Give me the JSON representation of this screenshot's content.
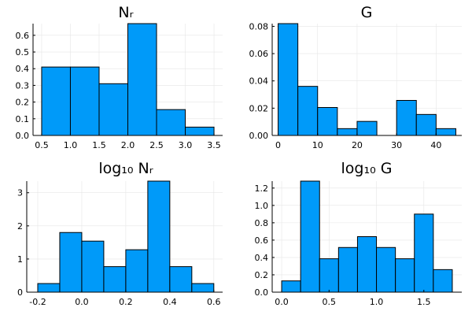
{
  "chart_data": [
    {
      "type": "bar",
      "title": "Nᵣ",
      "grid": true,
      "legend": "none",
      "color": "#009af9",
      "xlim": [
        0.35,
        3.65
      ],
      "ylim": [
        0,
        0.67
      ],
      "xticks": [
        0.5,
        1.0,
        1.5,
        2.0,
        2.5,
        3.0,
        3.5
      ],
      "xtick_labels": [
        "0.5",
        "1.0",
        "1.5",
        "2.0",
        "2.5",
        "3.0",
        "3.5"
      ],
      "yticks": [
        0,
        0.1,
        0.2,
        0.3,
        0.4,
        0.5,
        0.6
      ],
      "ytick_labels": [
        "0.0",
        "0.1",
        "0.2",
        "0.3",
        "0.4",
        "0.5",
        "0.6"
      ],
      "bins": [
        {
          "x0": 0.5,
          "x1": 1.0,
          "value": 0.41
        },
        {
          "x0": 1.0,
          "x1": 1.5,
          "value": 0.41
        },
        {
          "x0": 1.5,
          "x1": 2.0,
          "value": 0.31
        },
        {
          "x0": 2.0,
          "x1": 2.5,
          "value": 0.67
        },
        {
          "x0": 2.5,
          "x1": 3.0,
          "value": 0.155
        },
        {
          "x0": 3.0,
          "x1": 3.5,
          "value": 0.05
        }
      ]
    },
    {
      "type": "bar",
      "title": "G",
      "grid": true,
      "legend": "none",
      "color": "#009af9",
      "xlim": [
        -1.5,
        46.5
      ],
      "ylim": [
        0,
        0.082
      ],
      "xticks": [
        0,
        10,
        20,
        30,
        40
      ],
      "xtick_labels": [
        "0",
        "10",
        "20",
        "30",
        "40"
      ],
      "yticks": [
        0,
        0.02,
        0.04,
        0.06,
        0.08
      ],
      "ytick_labels": [
        "0.00",
        "0.02",
        "0.04",
        "0.06",
        "0.08"
      ],
      "bins": [
        {
          "x0": 0,
          "x1": 5,
          "value": 0.082
        },
        {
          "x0": 5,
          "x1": 10,
          "value": 0.036
        },
        {
          "x0": 10,
          "x1": 15,
          "value": 0.0205
        },
        {
          "x0": 15,
          "x1": 20,
          "value": 0.005
        },
        {
          "x0": 20,
          "x1": 25,
          "value": 0.0103
        },
        {
          "x0": 25,
          "x1": 30,
          "value": 0
        },
        {
          "x0": 30,
          "x1": 35,
          "value": 0.0257
        },
        {
          "x0": 35,
          "x1": 40,
          "value": 0.0154
        },
        {
          "x0": 40,
          "x1": 45,
          "value": 0.005
        }
      ]
    },
    {
      "type": "bar",
      "title": "log₁₀ Nᵣ",
      "grid": true,
      "legend": "none",
      "color": "#009af9",
      "xlim": [
        -0.25,
        0.64
      ],
      "ylim": [
        0,
        3.35
      ],
      "xticks": [
        -0.2,
        0.0,
        0.2,
        0.4,
        0.6
      ],
      "xtick_labels": [
        "-0.2",
        "0.0",
        "0.2",
        "0.4",
        "0.6"
      ],
      "yticks": [
        0,
        1,
        2,
        3
      ],
      "ytick_labels": [
        "0",
        "1",
        "2",
        "3"
      ],
      "bins": [
        {
          "x0": -0.2,
          "x1": -0.1,
          "value": 0.26
        },
        {
          "x0": -0.1,
          "x1": 0.0,
          "value": 1.8
        },
        {
          "x0": 0.0,
          "x1": 0.1,
          "value": 1.54
        },
        {
          "x0": 0.1,
          "x1": 0.2,
          "value": 0.77
        },
        {
          "x0": 0.2,
          "x1": 0.3,
          "value": 1.28
        },
        {
          "x0": 0.3,
          "x1": 0.4,
          "value": 3.35
        },
        {
          "x0": 0.4,
          "x1": 0.5,
          "value": 0.77
        },
        {
          "x0": 0.5,
          "x1": 0.6,
          "value": 0.26
        }
      ]
    },
    {
      "type": "bar",
      "title": "log₁₀ G",
      "grid": true,
      "legend": "none",
      "color": "#009af9",
      "xlim": [
        -0.1,
        1.9
      ],
      "ylim": [
        0,
        1.28
      ],
      "xticks": [
        0.0,
        0.5,
        1.0,
        1.5
      ],
      "xtick_labels": [
        "0.0",
        "0.5",
        "1.0",
        "1.5"
      ],
      "yticks": [
        0,
        0.2,
        0.4,
        0.6,
        0.8,
        1.0,
        1.2
      ],
      "ytick_labels": [
        "0.0",
        "0.2",
        "0.4",
        "0.6",
        "0.8",
        "1.0",
        "1.2"
      ],
      "bins": [
        {
          "x0": 0.0,
          "x1": 0.2,
          "value": 0.13
        },
        {
          "x0": 0.2,
          "x1": 0.4,
          "value": 1.28
        },
        {
          "x0": 0.4,
          "x1": 0.6,
          "value": 0.385
        },
        {
          "x0": 0.6,
          "x1": 0.8,
          "value": 0.515
        },
        {
          "x0": 0.8,
          "x1": 1.0,
          "value": 0.64
        },
        {
          "x0": 1.0,
          "x1": 1.2,
          "value": 0.515
        },
        {
          "x0": 1.2,
          "x1": 1.4,
          "value": 0.385
        },
        {
          "x0": 1.4,
          "x1": 1.6,
          "value": 0.9
        },
        {
          "x0": 1.6,
          "x1": 1.8,
          "value": 0.26
        }
      ]
    }
  ]
}
